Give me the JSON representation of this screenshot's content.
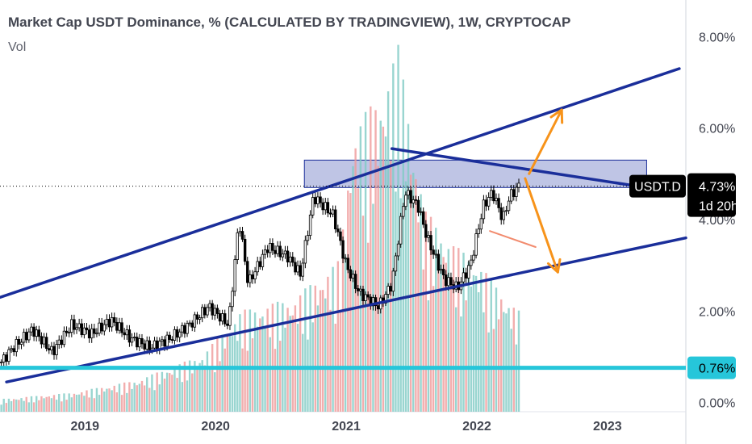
{
  "header": {
    "title": "Market Cap USDT Dominance, % (CALCULATED BY TRADINGVIEW), 1W, CRYPTOCAP",
    "volume_label": "Vol"
  },
  "colors": {
    "background": "#ffffff",
    "grid": "#e9ebf0",
    "candle": "#000000",
    "trendline": "#1a2e9a",
    "zone_fill": "#a9b1dc",
    "zone_stroke": "#1a2e9a",
    "support_line": "#26c6da",
    "arrow": "#f7931a",
    "volume_up": "#ef9a9a",
    "volume_down": "#80cbc4",
    "axis_text": "#434651",
    "price_tag_bg": "#000000",
    "level_tag_bg": "#26c6da"
  },
  "chart_data": {
    "type": "candlestick",
    "title": "Market Cap USDT Dominance, % (CALCULATED BY TRADINGVIEW), 1W, CRYPTOCAP",
    "ylabel": "",
    "xlabel": "",
    "y_scale": "linear",
    "ylim": [
      -0.2,
      8.8
    ],
    "xlim": [
      2018.35,
      2023.6
    ],
    "y_ticks": [
      {
        "value": 0,
        "label": "0.00%"
      },
      {
        "value": 2,
        "label": "2.00%"
      },
      {
        "value": 4,
        "label": "4.00%"
      },
      {
        "value": 6,
        "label": "6.00%"
      },
      {
        "value": 8,
        "label": "8.00%"
      }
    ],
    "x_ticks": [
      {
        "value": 2019,
        "label": "2019"
      },
      {
        "value": 2020,
        "label": "2020"
      },
      {
        "value": 2021,
        "label": "2021"
      },
      {
        "value": 2022,
        "label": "2022"
      },
      {
        "value": 2023,
        "label": "2023"
      }
    ],
    "grid": false,
    "close_price_path": [
      [
        2018.35,
        0.85
      ],
      [
        2018.45,
        1.2
      ],
      [
        2018.6,
        1.6
      ],
      [
        2018.75,
        1.1
      ],
      [
        2018.9,
        1.7
      ],
      [
        2019.05,
        1.5
      ],
      [
        2019.2,
        1.8
      ],
      [
        2019.35,
        1.4
      ],
      [
        2019.5,
        1.2
      ],
      [
        2019.65,
        1.4
      ],
      [
        2019.8,
        1.7
      ],
      [
        2019.95,
        2.1
      ],
      [
        2020.1,
        1.7
      ],
      [
        2020.18,
        4.0
      ],
      [
        2020.25,
        2.6
      ],
      [
        2020.4,
        3.4
      ],
      [
        2020.55,
        3.2
      ],
      [
        2020.65,
        2.8
      ],
      [
        2020.75,
        4.5
      ],
      [
        2020.9,
        4.1
      ],
      [
        2021.0,
        3.0
      ],
      [
        2021.1,
        2.4
      ],
      [
        2021.25,
        2.1
      ],
      [
        2021.35,
        2.6
      ],
      [
        2021.45,
        4.6
      ],
      [
        2021.55,
        4.3
      ],
      [
        2021.62,
        3.6
      ],
      [
        2021.75,
        2.7
      ],
      [
        2021.85,
        2.5
      ],
      [
        2021.95,
        3.0
      ],
      [
        2022.05,
        4.3
      ],
      [
        2022.12,
        4.6
      ],
      [
        2022.2,
        4.0
      ],
      [
        2022.25,
        4.5
      ],
      [
        2022.32,
        4.73
      ]
    ],
    "volume": {
      "ylim": [
        0,
        6.5
      ],
      "path": [
        [
          2018.35,
          0.2
        ],
        [
          2018.9,
          0.3
        ],
        [
          2019.4,
          0.5
        ],
        [
          2019.9,
          0.9
        ],
        [
          2020.2,
          1.6
        ],
        [
          2020.6,
          1.8
        ],
        [
          2020.95,
          2.4
        ],
        [
          2021.05,
          4.5
        ],
        [
          2021.25,
          5.0
        ],
        [
          2021.4,
          5.8
        ],
        [
          2021.6,
          3.2
        ],
        [
          2021.85,
          2.6
        ],
        [
          2022.0,
          2.4
        ],
        [
          2022.15,
          2.0
        ],
        [
          2022.32,
          1.6
        ]
      ]
    },
    "annotations": {
      "current_price": 4.73,
      "current_price_label": "4.73%",
      "symbol": "USDT.D",
      "countdown": "1d 20h",
      "support_level": 0.76,
      "support_label": "0.76%",
      "resistance_zone": [
        4.7,
        5.3
      ],
      "channel_upper": [
        [
          2018.35,
          2.3
        ],
        [
          2023.55,
          7.3
        ]
      ],
      "channel_lower": [
        [
          2018.4,
          0.45
        ],
        [
          2023.6,
          3.6
        ]
      ],
      "descending_resistance": [
        [
          2021.35,
          5.55
        ],
        [
          2023.3,
          4.7
        ]
      ],
      "small_line": [
        [
          2022.1,
          3.75
        ],
        [
          2022.45,
          3.4
        ]
      ],
      "arrow_up": [
        [
          2022.4,
          5.0
        ],
        [
          2022.65,
          6.4
        ]
      ],
      "arrow_down": [
        [
          2022.37,
          4.9
        ],
        [
          2022.62,
          2.85
        ]
      ]
    }
  }
}
